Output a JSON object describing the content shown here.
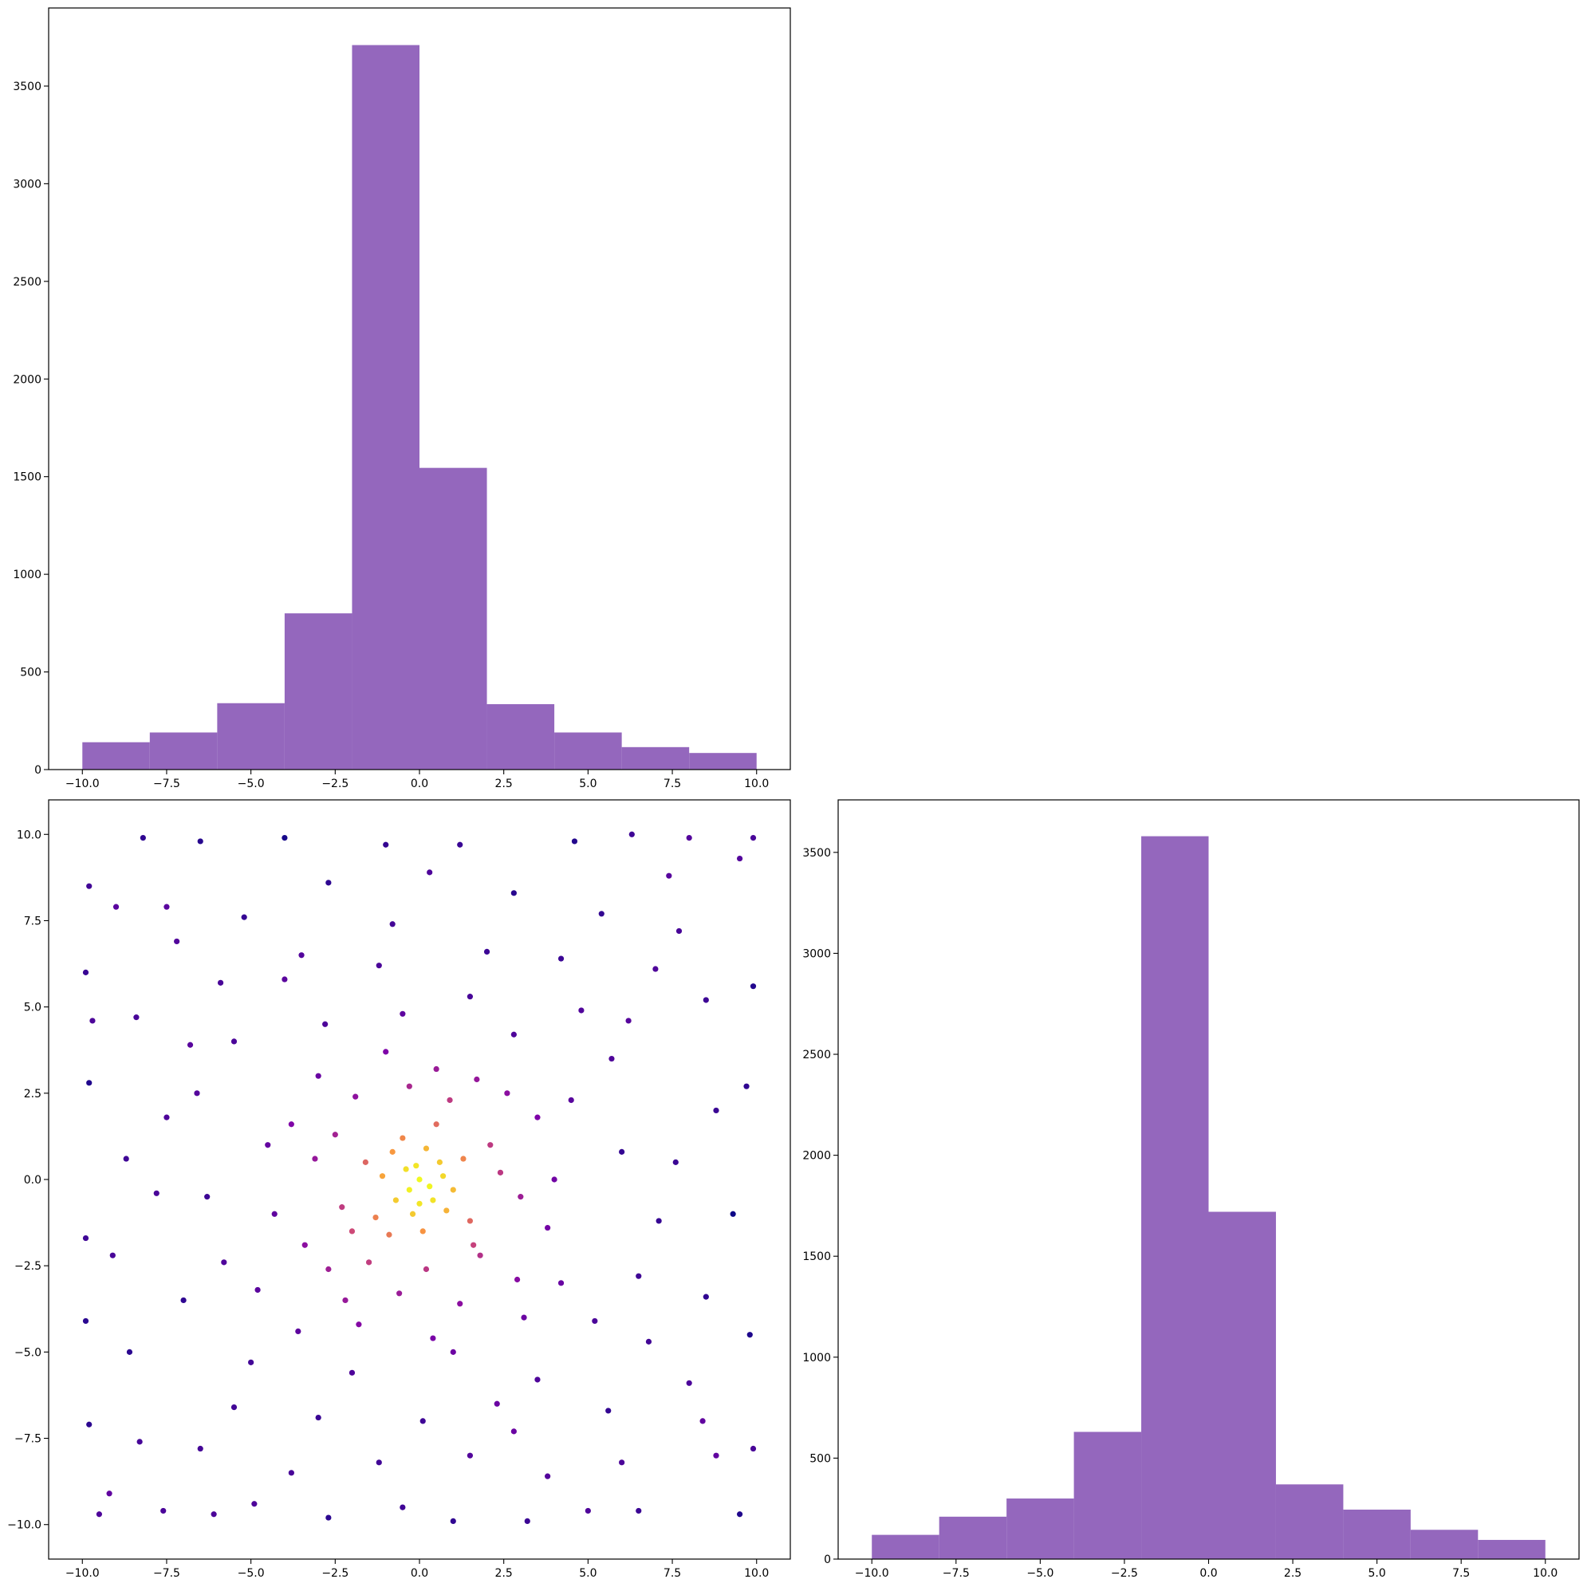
{
  "chart_data": [
    {
      "type": "histogram",
      "color": "#9467bd",
      "bins": [
        -10,
        -8,
        -6,
        -4,
        -2,
        0,
        2,
        4,
        6,
        8,
        10
      ],
      "values": [
        140,
        190,
        340,
        800,
        3710,
        1545,
        335,
        190,
        115,
        85
      ],
      "xlim": [
        -11,
        11
      ],
      "ylim": [
        0,
        3900
      ],
      "xticks": [
        {
          "value": -10,
          "label": "−10.0"
        },
        {
          "value": -7.5,
          "label": "−7.5"
        },
        {
          "value": -5,
          "label": "−5.0"
        },
        {
          "value": -2.5,
          "label": "−2.5"
        },
        {
          "value": 0,
          "label": "0.0"
        },
        {
          "value": 2.5,
          "label": "2.5"
        },
        {
          "value": 5,
          "label": "5.0"
        },
        {
          "value": 7.5,
          "label": "7.5"
        },
        {
          "value": 10,
          "label": "10.0"
        }
      ],
      "yticks": [
        0,
        500,
        1000,
        1500,
        2000,
        2500,
        3000,
        3500
      ]
    },
    {
      "type": "scatter",
      "colormap": "plasma",
      "x": [
        0,
        0.3,
        -0.4,
        0.6,
        -0.7,
        0.2,
        -0.2,
        1.0,
        -1.1,
        0.8,
        -0.5,
        1.3,
        -1.3,
        0.1,
        -1.6,
        1.5,
        -0.9,
        0.5,
        -0.1,
        0.4,
        -0.3,
        0.7,
        -0.8,
        0.0,
        2.1,
        -2.3,
        1.8,
        -1.9,
        3.0,
        -3.1,
        0.5,
        -0.6,
        2.6,
        -2.7,
        3.5,
        -3.4,
        1.2,
        -1.0,
        2.9,
        -2.2,
        3.8,
        -3.8,
        0.9,
        -1.5,
        2.4,
        -2.5,
        1.6,
        -0.3,
        0.2,
        -2.0,
        1.7,
        -3.0,
        4.5,
        -4.8,
        5.2,
        -5.5,
        1.5,
        -2.0,
        6.0,
        -6.3,
        3.5,
        -4.0,
        4.8,
        -5.0,
        2.3,
        -1.2,
        6.5,
        -6.6,
        0.4,
        -0.5,
        4.2,
        -4.3,
        5.7,
        -3.6,
        2.8,
        -2.8,
        1.0,
        -5.8,
        4.0,
        -4.5,
        3.1,
        -1.8,
        -9.8,
        -8.2,
        -6.5,
        -4.0,
        -1.0,
        1.2,
        4.6,
        6.3,
        8.0,
        9.9,
        -9.9,
        -9.0,
        -7.2,
        -5.2,
        -2.7,
        0.3,
        2.8,
        5.4,
        7.4,
        9.5,
        -9.7,
        -8.4,
        -6.8,
        8.5,
        9.9,
        7.0,
        -9.8,
        -8.7,
        -7.5,
        8.8,
        9.7,
        7.6,
        -9.9,
        -9.1,
        -7.8,
        9.3,
        8.5,
        7.1,
        -9.9,
        -8.6,
        -7.0,
        9.8,
        8.0,
        6.8,
        -9.8,
        -9.2,
        -7.6,
        -6.1,
        -4.9,
        -2.7,
        -0.5,
        1.0,
        3.2,
        5.0,
        6.5,
        9.5,
        -8.3,
        -6.5,
        -3.8,
        -1.2,
        1.5,
        3.8,
        6.0,
        8.8,
        -5.5,
        -3.0,
        0.1,
        2.8,
        5.6,
        8.4,
        -7.5,
        7.7,
        -0.8,
        2.0,
        -3.5,
        4.2,
        -5.9,
        6.2,
        9.9,
        -9.5
      ],
      "values": [
        0,
        -0.2,
        0.3,
        0.5,
        -0.6,
        0.9,
        -1.0,
        -0.3,
        0.1,
        -0.9,
        1.2,
        0.6,
        -1.1,
        -1.5,
        0.5,
        -1.2,
        -1.6,
        1.6,
        0.4,
        -0.6,
        -0.3,
        0.1,
        0.8,
        -0.7,
        1.0,
        -0.8,
        -2.2,
        2.4,
        -0.5,
        0.6,
        3.2,
        -3.3,
        2.5,
        -2.6,
        1.8,
        -1.9,
        -3.6,
        3.7,
        -2.9,
        -3.5,
        -1.4,
        1.6,
        2.3,
        -2.4,
        0.2,
        1.3,
        -1.9,
        2.7,
        -2.6,
        -1.5,
        2.9,
        3.0,
        2.3,
        -3.2,
        -4.1,
        4.0,
        5.3,
        -5.6,
        0.8,
        -0.5,
        -5.8,
        5.8,
        4.9,
        -5.3,
        -6.5,
        6.2,
        -2.8,
        2.5,
        -4.6,
        4.8,
        -3.0,
        -1.0,
        3.5,
        -4.4,
        4.2,
        4.5,
        -5.0,
        -2.4,
        0.0,
        1.0,
        -4.0,
        -4.2,
        8.5,
        9.9,
        9.8,
        9.9,
        9.7,
        9.7,
        9.8,
        10.0,
        9.9,
        9.9,
        6.0,
        7.9,
        6.9,
        7.6,
        8.6,
        8.9,
        8.3,
        7.7,
        8.8,
        9.3,
        4.6,
        4.7,
        3.9,
        5.2,
        5.6,
        6.1,
        2.8,
        0.6,
        1.8,
        2.0,
        2.7,
        0.5,
        -1.7,
        -2.2,
        -0.4,
        -1.0,
        -3.4,
        -1.2,
        -4.1,
        -5.0,
        -3.5,
        -4.5,
        -5.9,
        -4.7,
        -7.1,
        -9.1,
        -9.6,
        -9.7,
        -9.4,
        -9.8,
        -9.5,
        -9.9,
        -9.9,
        -9.6,
        -9.6,
        -9.7,
        -7.6,
        -7.8,
        -8.5,
        -8.2,
        -8.0,
        -8.6,
        -8.2,
        -8.0,
        -6.6,
        -6.9,
        -7.0,
        -7.3,
        -6.7,
        -7.0,
        7.9,
        7.2,
        7.4,
        6.6,
        6.5,
        6.4,
        5.7,
        4.6,
        -7.8,
        -9.7
      ],
      "xlim": [
        -11,
        11
      ],
      "ylim": [
        -11,
        11
      ],
      "xticks": [
        {
          "value": -10,
          "label": "−10.0"
        },
        {
          "value": -7.5,
          "label": "−7.5"
        },
        {
          "value": -5,
          "label": "−5.0"
        },
        {
          "value": -2.5,
          "label": "−2.5"
        },
        {
          "value": 0,
          "label": "0.0"
        },
        {
          "value": 2.5,
          "label": "2.5"
        },
        {
          "value": 5,
          "label": "5.0"
        },
        {
          "value": 7.5,
          "label": "7.5"
        },
        {
          "value": 10,
          "label": "10.0"
        }
      ],
      "yticks": [
        {
          "value": -10,
          "label": "−10.0"
        },
        {
          "value": -7.5,
          "label": "−7.5"
        },
        {
          "value": -5,
          "label": "−5.0"
        },
        {
          "value": -2.5,
          "label": "−2.5"
        },
        {
          "value": 0,
          "label": "0.0"
        },
        {
          "value": 2.5,
          "label": "2.5"
        },
        {
          "value": 5,
          "label": "5.0"
        },
        {
          "value": 7.5,
          "label": "7.5"
        },
        {
          "value": 10,
          "label": "10.0"
        }
      ]
    },
    {
      "type": "histogram",
      "color": "#9467bd",
      "bins": [
        -10,
        -8,
        -6,
        -4,
        -2,
        0,
        2,
        4,
        6,
        8,
        10
      ],
      "values": [
        120,
        210,
        300,
        630,
        3580,
        1720,
        370,
        245,
        145,
        95
      ],
      "xlim": [
        -11,
        11
      ],
      "ylim": [
        0,
        3760
      ],
      "xticks": [
        {
          "value": -10,
          "label": "−10.0"
        },
        {
          "value": -7.5,
          "label": "−7.5"
        },
        {
          "value": -5,
          "label": "−5.0"
        },
        {
          "value": -2.5,
          "label": "−2.5"
        },
        {
          "value": 0,
          "label": "0.0"
        },
        {
          "value": 2.5,
          "label": "2.5"
        },
        {
          "value": 5,
          "label": "5.0"
        },
        {
          "value": 7.5,
          "label": "7.5"
        },
        {
          "value": 10,
          "label": "10.0"
        }
      ],
      "yticks": [
        0,
        500,
        1000,
        1500,
        2000,
        2500,
        3000,
        3500
      ]
    }
  ]
}
